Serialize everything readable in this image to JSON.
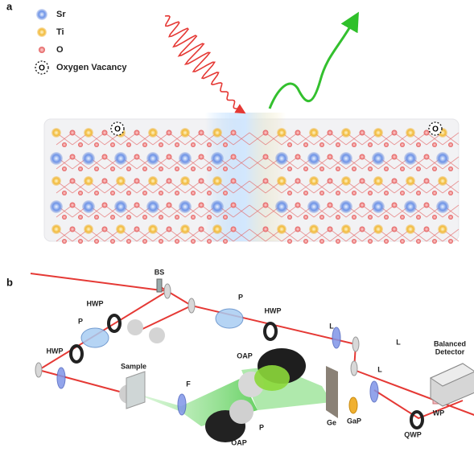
{
  "panel_a": {
    "label": "a",
    "legend": [
      {
        "label": "Sr"
      },
      {
        "label": "Ti"
      },
      {
        "label": "O"
      },
      {
        "label": "Oxygen Vacancy"
      }
    ],
    "vacancy_marks": [
      "O",
      "O",
      "O"
    ]
  },
  "panel_b": {
    "label": "b",
    "components": [
      {
        "label": "BS"
      },
      {
        "label": "HWP"
      },
      {
        "label": "P"
      },
      {
        "label": "HWP"
      },
      {
        "label": "Sample"
      },
      {
        "label": "F"
      },
      {
        "label": "P"
      },
      {
        "label": "HWP"
      },
      {
        "label": "OAP"
      },
      {
        "label": "OAP"
      },
      {
        "label": "P"
      },
      {
        "label": "L"
      },
      {
        "label": "L"
      },
      {
        "label": "Ge"
      },
      {
        "label": "GaP"
      },
      {
        "label": "L"
      },
      {
        "label": "QWP"
      },
      {
        "label": "WP"
      },
      {
        "label": "Balanced"
      },
      {
        "label": "Detector"
      }
    ]
  }
}
